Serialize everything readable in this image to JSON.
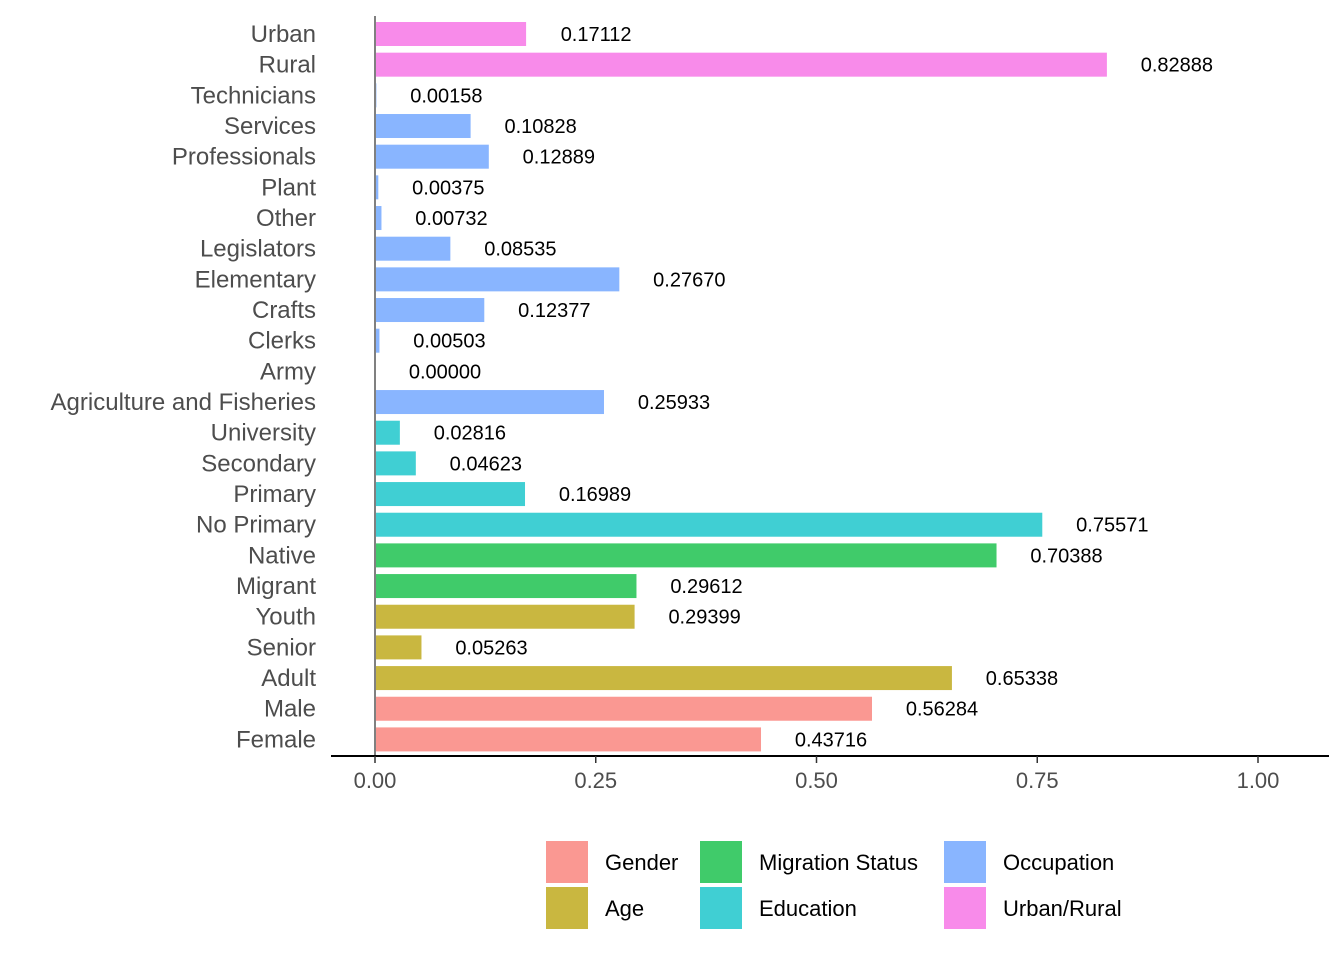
{
  "chart_data": {
    "type": "bar",
    "orientation": "horizontal",
    "title": "",
    "xlabel": "",
    "ylabel": "",
    "xlim": [
      0,
      1
    ],
    "x_ticks": [
      "0.00",
      "0.25",
      "0.50",
      "0.75",
      "1.00"
    ],
    "x_tick_values": [
      0,
      0.25,
      0.5,
      0.75,
      1.0
    ],
    "grid": false,
    "legend_position": "bottom",
    "groups": [
      {
        "name": "Gender",
        "color": "#F8766D"
      },
      {
        "name": "Age",
        "color": "#B79F00"
      },
      {
        "name": "Migration Status",
        "color": "#00BA38"
      },
      {
        "name": "Education",
        "color": "#00BFC4"
      },
      {
        "name": "Occupation",
        "color": "#619CFF"
      },
      {
        "name": "Urban/Rural",
        "color": "#F564E3"
      }
    ],
    "bars": [
      {
        "category": "Urban",
        "value": 0.17112,
        "label": "0.17112",
        "group": "Urban/Rural"
      },
      {
        "category": "Rural",
        "value": 0.82888,
        "label": "0.82888",
        "group": "Urban/Rural"
      },
      {
        "category": "Technicians",
        "value": 0.00158,
        "label": "0.00158",
        "group": "Occupation"
      },
      {
        "category": "Services",
        "value": 0.10828,
        "label": "0.10828",
        "group": "Occupation"
      },
      {
        "category": "Professionals",
        "value": 0.12889,
        "label": "0.12889",
        "group": "Occupation"
      },
      {
        "category": "Plant",
        "value": 0.00375,
        "label": "0.00375",
        "group": "Occupation"
      },
      {
        "category": "Other",
        "value": 0.00732,
        "label": "0.00732",
        "group": "Occupation"
      },
      {
        "category": "Legislators",
        "value": 0.08535,
        "label": "0.08535",
        "group": "Occupation"
      },
      {
        "category": "Elementary",
        "value": 0.2767,
        "label": "0.27670",
        "group": "Occupation"
      },
      {
        "category": "Crafts",
        "value": 0.12377,
        "label": "0.12377",
        "group": "Occupation"
      },
      {
        "category": "Clerks",
        "value": 0.00503,
        "label": "0.00503",
        "group": "Occupation"
      },
      {
        "category": "Army",
        "value": 0.0,
        "label": "0.00000",
        "group": "Occupation"
      },
      {
        "category": "Agriculture and Fisheries",
        "value": 0.25933,
        "label": "0.25933",
        "group": "Occupation"
      },
      {
        "category": "University",
        "value": 0.02816,
        "label": "0.02816",
        "group": "Education"
      },
      {
        "category": "Secondary",
        "value": 0.04623,
        "label": "0.04623",
        "group": "Education"
      },
      {
        "category": "Primary",
        "value": 0.16989,
        "label": "0.16989",
        "group": "Education"
      },
      {
        "category": "No Primary",
        "value": 0.75571,
        "label": "0.75571",
        "group": "Education"
      },
      {
        "category": "Native",
        "value": 0.70388,
        "label": "0.70388",
        "group": "Migration Status"
      },
      {
        "category": "Migrant",
        "value": 0.29612,
        "label": "0.29612",
        "group": "Migration Status"
      },
      {
        "category": "Youth",
        "value": 0.29399,
        "label": "0.29399",
        "group": "Age"
      },
      {
        "category": "Senior",
        "value": 0.05263,
        "label": "0.05263",
        "group": "Age"
      },
      {
        "category": "Adult",
        "value": 0.65338,
        "label": "0.65338",
        "group": "Age"
      },
      {
        "category": "Male",
        "value": 0.56284,
        "label": "0.56284",
        "group": "Gender"
      },
      {
        "category": "Female",
        "value": 0.43716,
        "label": "0.43716",
        "group": "Gender"
      }
    ]
  }
}
